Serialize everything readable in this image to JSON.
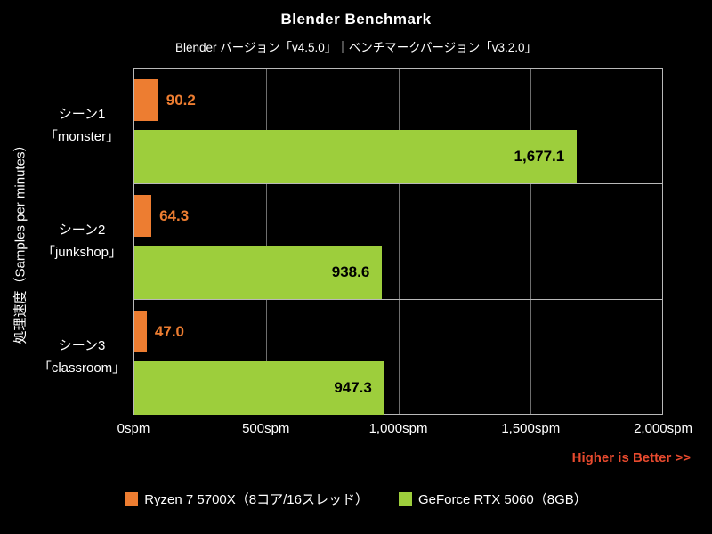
{
  "chart_data": {
    "type": "bar",
    "orientation": "horizontal",
    "title": "Blender Benchmark",
    "subtitle": "Blender バージョン「v4.5.0」｜ベンチマークバージョン「v3.2.0」",
    "ylabel": "処理速度（Samples per minutes）",
    "note": "Higher is Better >>",
    "xlim": [
      0,
      2000
    ],
    "x_ticks": [
      {
        "value": 0,
        "label": "0spm"
      },
      {
        "value": 500,
        "label": "500spm"
      },
      {
        "value": 1000,
        "label": "1,000spm"
      },
      {
        "value": 1500,
        "label": "1,500spm"
      },
      {
        "value": 2000,
        "label": "2,000spm"
      }
    ],
    "categories": [
      [
        "シーン1",
        "「monster」"
      ],
      [
        "シーン2",
        "「junkshop」"
      ],
      [
        "シーン3",
        "「classroom」"
      ]
    ],
    "series": [
      {
        "name": "Ryzen 7 5700X（8コア/16スレッド）",
        "color": "#ed7d31",
        "values": [
          90.2,
          64.3,
          47.0
        ],
        "value_labels": [
          "90.2",
          "64.3",
          "47.0"
        ],
        "label_position": "outside",
        "label_color": "#ed7d31"
      },
      {
        "name": "GeForce RTX 5060（8GB）",
        "color": "#9dce3c",
        "values": [
          1677.1,
          938.6,
          947.3
        ],
        "value_labels": [
          "1,677.1",
          "938.6",
          "947.3"
        ],
        "label_position": "inside",
        "label_color": "#000000"
      }
    ],
    "grid": "vertical-lines",
    "legend_position": "bottom",
    "colors": {
      "background": "#000000",
      "border": "#b9b9b9",
      "gridline": "#6e6e6e",
      "note": "#e84a2e",
      "text": "#ffffff"
    }
  }
}
